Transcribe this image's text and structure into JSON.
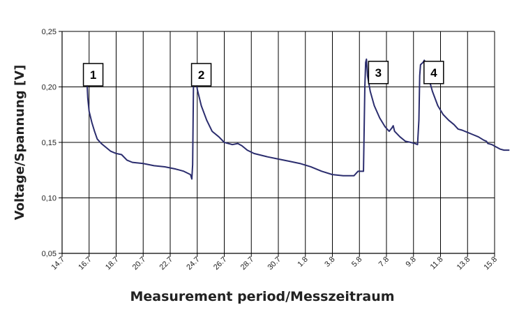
{
  "chart_data": {
    "type": "line",
    "title": "",
    "xlabel": "Measurement period/Messzeitraum",
    "ylabel": "Voltage/Spannung  [V]",
    "x_tick_labels": [
      "14.7",
      "16.7",
      "18.7",
      "20.7",
      "22.7",
      "24.7",
      "26.7",
      "28.7",
      "30.7",
      "1.8",
      "3.8",
      "5.8",
      "7.8",
      "9.8",
      "11.8",
      "13.8",
      "15.8"
    ],
    "y_tick_labels": [
      "0,05",
      "0,10",
      "0,15",
      "0,20",
      "0,25"
    ],
    "y_ticks": [
      0.05,
      0.1,
      0.15,
      0.2,
      0.25
    ],
    "ylim": [
      0.05,
      0.25
    ],
    "x_tick_count": 17,
    "grid": true,
    "line_color": "#2b2d6e",
    "series": [
      {
        "points": [
          [
            0.85,
            0.205
          ],
          [
            0.87,
            0.212
          ],
          [
            0.89,
            0.203
          ],
          [
            0.91,
            0.213
          ],
          [
            0.93,
            0.2
          ],
          [
            0.95,
            0.19
          ],
          [
            1.0,
            0.178
          ],
          [
            1.1,
            0.168
          ],
          [
            1.2,
            0.16
          ],
          [
            1.3,
            0.153
          ],
          [
            1.45,
            0.149
          ],
          [
            1.6,
            0.146
          ],
          [
            1.8,
            0.142
          ],
          [
            2.0,
            0.14
          ],
          [
            2.2,
            0.139
          ],
          [
            2.4,
            0.134
          ],
          [
            2.6,
            0.132
          ],
          [
            3.0,
            0.131
          ],
          [
            3.4,
            0.129
          ],
          [
            3.8,
            0.128
          ],
          [
            4.2,
            0.126
          ],
          [
            4.5,
            0.124
          ],
          [
            4.75,
            0.121
          ],
          [
            4.8,
            0.117
          ],
          [
            4.83,
            0.13
          ],
          [
            4.86,
            0.2
          ],
          [
            4.89,
            0.213
          ],
          [
            4.92,
            0.216
          ],
          [
            4.95,
            0.21
          ],
          [
            5.0,
            0.198
          ],
          [
            5.15,
            0.183
          ],
          [
            5.35,
            0.17
          ],
          [
            5.55,
            0.16
          ],
          [
            5.8,
            0.155
          ],
          [
            6.0,
            0.15
          ],
          [
            6.3,
            0.148
          ],
          [
            6.5,
            0.149
          ],
          [
            6.65,
            0.147
          ],
          [
            6.85,
            0.143
          ],
          [
            7.1,
            0.14
          ],
          [
            7.6,
            0.137
          ],
          [
            8.0,
            0.135
          ],
          [
            8.4,
            0.133
          ],
          [
            8.8,
            0.131
          ],
          [
            9.2,
            0.128
          ],
          [
            9.6,
            0.124
          ],
          [
            10.0,
            0.121
          ],
          [
            10.4,
            0.12
          ],
          [
            10.8,
            0.12
          ],
          [
            10.95,
            0.124
          ],
          [
            11.15,
            0.124
          ],
          [
            11.2,
            0.2
          ],
          [
            11.23,
            0.222
          ],
          [
            11.26,
            0.225
          ],
          [
            11.3,
            0.21
          ],
          [
            11.4,
            0.196
          ],
          [
            11.55,
            0.183
          ],
          [
            11.75,
            0.172
          ],
          [
            11.95,
            0.164
          ],
          [
            12.1,
            0.16
          ],
          [
            12.2,
            0.163
          ],
          [
            12.25,
            0.165
          ],
          [
            12.3,
            0.16
          ],
          [
            12.5,
            0.155
          ],
          [
            12.7,
            0.151
          ],
          [
            12.9,
            0.15
          ],
          [
            13.05,
            0.149
          ],
          [
            13.15,
            0.148
          ],
          [
            13.2,
            0.17
          ],
          [
            13.23,
            0.21
          ],
          [
            13.26,
            0.22
          ],
          [
            13.35,
            0.222
          ],
          [
            13.4,
            0.224
          ],
          [
            13.45,
            0.222
          ],
          [
            13.55,
            0.209
          ],
          [
            13.7,
            0.196
          ],
          [
            13.9,
            0.183
          ],
          [
            14.1,
            0.175
          ],
          [
            14.3,
            0.17
          ],
          [
            14.5,
            0.166
          ],
          [
            14.65,
            0.162
          ],
          [
            14.8,
            0.161
          ],
          [
            15.0,
            0.159
          ],
          [
            15.2,
            0.157
          ],
          [
            15.4,
            0.155
          ],
          [
            15.6,
            0.152
          ],
          [
            15.7,
            0.151
          ],
          [
            15.75,
            0.149
          ],
          [
            15.9,
            0.148
          ],
          [
            16.05,
            0.146
          ],
          [
            16.2,
            0.144
          ],
          [
            16.35,
            0.143
          ],
          [
            16.55,
            0.143
          ]
        ]
      }
    ],
    "annotations": [
      {
        "text": "1",
        "x": 1.15,
        "y": 0.211
      },
      {
        "text": "2",
        "x": 5.15,
        "y": 0.211
      },
      {
        "text": "3",
        "x": 11.7,
        "y": 0.213
      },
      {
        "text": "4",
        "x": 13.75,
        "y": 0.213
      }
    ]
  }
}
